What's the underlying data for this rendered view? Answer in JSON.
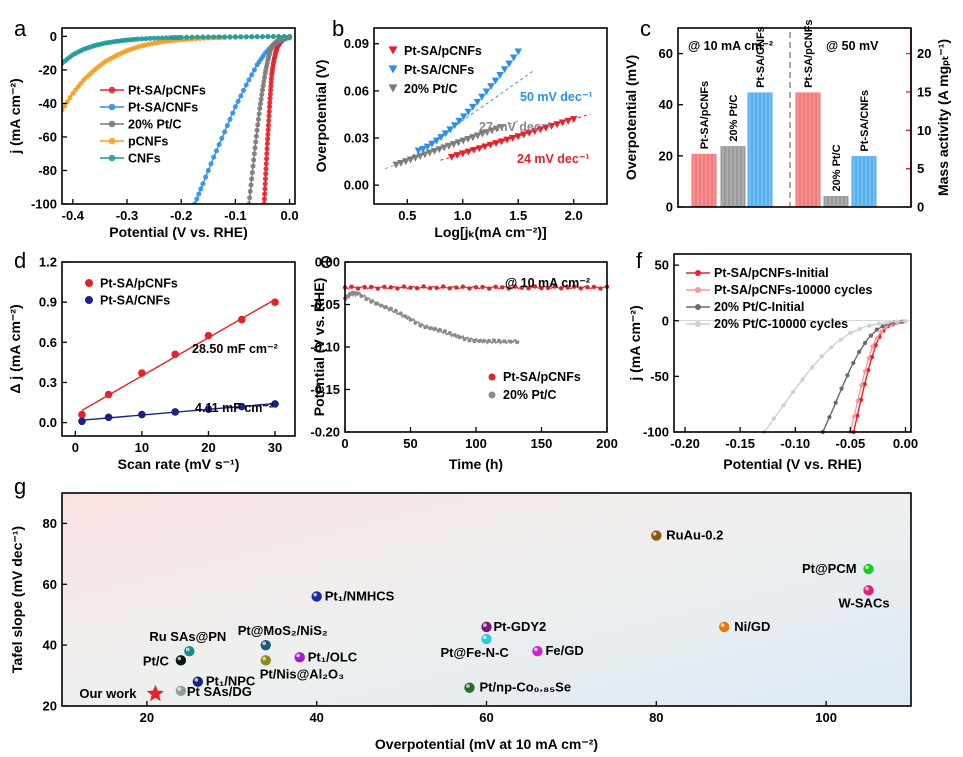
{
  "chart_data": [
    {
      "panel": "a",
      "type": "line",
      "xlabel": "Potential (V vs. RHE)",
      "ylabel": "j (mA cm⁻²)",
      "xlim": [
        -0.42,
        0.01
      ],
      "ylim": [
        -100,
        5
      ],
      "xticks": [
        -0.4,
        -0.3,
        -0.2,
        -0.1,
        0.0
      ],
      "xtick_labels": [
        "-0.4",
        "-0.3",
        "-0.2",
        "-0.1",
        "0.0"
      ],
      "yticks": [
        0,
        -20,
        -40,
        -60,
        -80,
        -100
      ],
      "ytick_labels": [
        "0",
        "-20",
        "-40",
        "-60",
        "-80",
        "-100"
      ],
      "series": [
        {
          "name": "Pt-SA/pCNFs",
          "color": "#e8202a",
          "marker": "circle",
          "x": [
            -0.047,
            -0.045,
            -0.043,
            -0.041,
            -0.039,
            -0.037,
            -0.035,
            -0.033,
            -0.03,
            -0.026,
            -0.022,
            -0.017,
            -0.012,
            -0.006,
            0.0
          ],
          "y": [
            -100,
            -88,
            -76,
            -64,
            -53,
            -42,
            -32,
            -23,
            -16,
            -10,
            -6,
            -3.5,
            -2,
            -1,
            -0.5
          ]
        },
        {
          "name": "Pt-SA/CNFs",
          "color": "#2f8fe6",
          "marker": "circle",
          "x": [
            -0.175,
            -0.16,
            -0.14,
            -0.12,
            -0.1,
            -0.08,
            -0.06,
            -0.045,
            -0.03,
            -0.02,
            -0.01,
            0.0
          ],
          "y": [
            -100,
            -88,
            -72,
            -57,
            -42,
            -29,
            -17,
            -10,
            -5,
            -3,
            -1.5,
            -0.8
          ]
        },
        {
          "name": "20% Pt/C",
          "color": "#7a7a7a",
          "marker": "circle",
          "x": [
            -0.075,
            -0.07,
            -0.065,
            -0.06,
            -0.055,
            -0.05,
            -0.045,
            -0.04,
            -0.035,
            -0.03,
            -0.02,
            -0.01,
            0.0
          ],
          "y": [
            -100,
            -85,
            -70,
            -56,
            -43,
            -32,
            -22,
            -14,
            -8,
            -5,
            -2,
            -1,
            -0.5
          ]
        },
        {
          "name": "pCNFs",
          "color": "#f5a020",
          "marker": "circle",
          "x": [
            -0.42,
            -0.4,
            -0.38,
            -0.36,
            -0.34,
            -0.32,
            -0.3,
            -0.28,
            -0.26,
            -0.24,
            -0.22,
            -0.2,
            -0.18,
            -0.15,
            -0.12,
            -0.08,
            -0.04,
            0.0
          ],
          "y": [
            -44,
            -34,
            -26,
            -20,
            -15,
            -11.5,
            -8.5,
            -6.3,
            -4.7,
            -3.5,
            -2.6,
            -2,
            -1.5,
            -1,
            -0.7,
            -0.4,
            -0.2,
            -0.1
          ]
        },
        {
          "name": "CNFs",
          "color": "#1f9a9a",
          "marker": "circle",
          "x": [
            -0.42,
            -0.4,
            -0.38,
            -0.36,
            -0.34,
            -0.32,
            -0.3,
            -0.28,
            -0.25,
            -0.22,
            -0.2,
            -0.16,
            -0.12,
            -0.08,
            -0.04,
            0.0
          ],
          "y": [
            -16,
            -11,
            -7.7,
            -5.5,
            -4,
            -3,
            -2.2,
            -1.6,
            -1.1,
            -0.8,
            -0.6,
            -0.4,
            -0.3,
            -0.2,
            -0.1,
            -0.05
          ]
        }
      ]
    },
    {
      "panel": "b",
      "type": "scatter",
      "xlabel": "Log[jₖ(mA cm⁻²)]",
      "ylabel": "Overpotential (V)",
      "xlim": [
        0.2,
        2.3
      ],
      "ylim": [
        -0.012,
        0.1
      ],
      "xticks": [
        0.5,
        1.0,
        1.5,
        2.0
      ],
      "xtick_labels": [
        "0.5",
        "1.0",
        "1.5",
        "2.0"
      ],
      "yticks": [
        0.0,
        0.03,
        0.06,
        0.09
      ],
      "ytick_labels": [
        "0.00",
        "0.03",
        "0.06",
        "0.09"
      ],
      "series": [
        {
          "name": "Pt-SA/pCNFs",
          "color": "#e8202a",
          "marker": "triangle-down",
          "x_start": 0.9,
          "x_end": 2.0,
          "y_start": 0.018,
          "y_end": 0.042
        },
        {
          "name": "Pt-SA/CNFs",
          "color": "#2f8fe6",
          "marker": "triangle-down",
          "x_start": 0.6,
          "x_end": 1.5,
          "y_start": 0.022,
          "y_end": 0.085
        },
        {
          "name": "20% Pt/C",
          "color": "#7a7a7a",
          "marker": "triangle-down",
          "x_start": 0.4,
          "x_end": 1.35,
          "y_start": 0.013,
          "y_end": 0.037
        }
      ],
      "annotations": [
        {
          "text": "50 mV dec⁻¹",
          "color": "#2f8fe6"
        },
        {
          "text": "27 mV dec⁻¹",
          "color": "#8a8a8a"
        },
        {
          "text": "24 mV dec⁻¹",
          "color": "#e8202a"
        }
      ]
    },
    {
      "panel": "c",
      "type": "bar",
      "ylabel_left": "Overpotential (mV)",
      "ylabel_right": "Mass activity (A mgₚₜ⁻¹)",
      "ylim_left": [
        0,
        70
      ],
      "ylim_right": [
        0,
        23.33
      ],
      "yticks_left": [
        0,
        20,
        40,
        60
      ],
      "yticks_right": [
        0,
        5,
        10,
        15,
        20
      ],
      "group_labels": [
        "@ 10 mA cm⁻²",
        "@ 50 mV"
      ],
      "groups": [
        {
          "label": "@ 10 mA cm⁻²",
          "axis": "left",
          "categories": [
            "Pt-SA/pCNFs",
            "20% Pt/C",
            "Pt-SA/CNFs"
          ],
          "values": [
            21,
            24,
            45
          ],
          "colors": [
            "#f27a7a",
            "#9a9a9a",
            "#56b0f0"
          ]
        },
        {
          "label": "@ 50 mV",
          "axis": "right",
          "categories": [
            "Pt-SA/pCNFs",
            "20% Pt/C",
            "Pt-SA/CNFs"
          ],
          "values": [
            15,
            1.5,
            6.7
          ],
          "colors": [
            "#f27a7a",
            "#9a9a9a",
            "#56b0f0"
          ]
        }
      ]
    },
    {
      "panel": "d",
      "type": "scatter",
      "xlabel": "Scan rate (mV s⁻¹)",
      "ylabel": "Δ j (mA cm⁻²)",
      "xlim": [
        -2,
        33
      ],
      "ylim": [
        -0.1,
        1.2
      ],
      "xticks": [
        0,
        10,
        20,
        30
      ],
      "yticks": [
        0.0,
        0.3,
        0.6,
        0.9,
        1.2
      ],
      "ytick_labels": [
        "0.0",
        "0.3",
        "0.6",
        "0.9",
        "1.2"
      ],
      "series": [
        {
          "name": "Pt-SA/pCNFs",
          "color": "#e8202a",
          "x": [
            1,
            5,
            10,
            15,
            20,
            25,
            30
          ],
          "y": [
            0.06,
            0.21,
            0.37,
            0.51,
            0.65,
            0.77,
            0.9
          ]
        },
        {
          "name": "Pt-SA/CNFs",
          "color": "#1a237e",
          "x": [
            1,
            5,
            10,
            15,
            20,
            25,
            30
          ],
          "y": [
            0.01,
            0.04,
            0.06,
            0.08,
            0.1,
            0.12,
            0.14
          ]
        }
      ],
      "annotations": [
        {
          "text": "28.50 mF cm⁻²"
        },
        {
          "text": "4.11 mF cm⁻²"
        }
      ]
    },
    {
      "panel": "e",
      "type": "line",
      "xlabel": "Time (h)",
      "ylabel": "Potential (V vs. RHE)",
      "title_note": "@ 10 mA cm⁻²",
      "xlim": [
        0,
        200
      ],
      "ylim": [
        -0.2,
        0.0
      ],
      "xticks": [
        0,
        50,
        100,
        150,
        200
      ],
      "yticks": [
        0.0,
        -0.05,
        -0.1,
        -0.15,
        -0.2
      ],
      "ytick_labels": [
        "0.00",
        "-0.05",
        "-0.10",
        "-0.15",
        "-0.20"
      ],
      "series": [
        {
          "name": "Pt-SA/pCNFs",
          "color": "#e8202a",
          "x": [
            0,
            50,
            100,
            150,
            200
          ],
          "y": [
            -0.03,
            -0.03,
            -0.03,
            -0.03,
            -0.03
          ]
        },
        {
          "name": "20% Pt/C",
          "color": "#8a8a8a",
          "x": [
            0,
            5,
            10,
            20,
            30,
            40,
            50,
            60,
            70,
            80,
            90,
            100,
            110,
            120,
            133
          ],
          "y": [
            -0.043,
            -0.038,
            -0.037,
            -0.045,
            -0.053,
            -0.06,
            -0.067,
            -0.075,
            -0.08,
            -0.085,
            -0.089,
            -0.092,
            -0.094,
            -0.094,
            -0.093
          ]
        }
      ]
    },
    {
      "panel": "f",
      "type": "line",
      "xlabel": "Potential (V vs. RHE)",
      "ylabel": "j (mA cm⁻²)",
      "xlim": [
        -0.21,
        0.005
      ],
      "ylim": [
        -100,
        60
      ],
      "xticks": [
        -0.2,
        -0.15,
        -0.1,
        -0.05,
        0.0
      ],
      "xtick_labels": [
        "-0.20",
        "-0.15",
        "-0.10",
        "-0.05",
        "0.00"
      ],
      "yticks": [
        50,
        0,
        -50,
        -100
      ],
      "series": [
        {
          "name": "Pt-SA/pCNFs-Initial",
          "color": "#e8202a",
          "x": [
            -0.047,
            -0.042,
            -0.037,
            -0.032,
            -0.027,
            -0.022,
            -0.016,
            -0.01,
            -0.005,
            0.0
          ],
          "y": [
            -100,
            -78,
            -57,
            -38,
            -22,
            -11,
            -5,
            -2.5,
            -1.2,
            -0.6
          ]
        },
        {
          "name": "Pt-SA/pCNFs-10000 cycles",
          "color": "#f59a9a",
          "x": [
            -0.05,
            -0.045,
            -0.04,
            -0.035,
            -0.03,
            -0.024,
            -0.018,
            -0.011,
            -0.005,
            0.0
          ],
          "y": [
            -100,
            -79,
            -58,
            -39,
            -23,
            -12,
            -5.5,
            -2.6,
            -1.2,
            -0.6
          ]
        },
        {
          "name": "20% Pt/C-Initial",
          "color": "#6a6a6a",
          "x": [
            -0.075,
            -0.066,
            -0.058,
            -0.05,
            -0.042,
            -0.034,
            -0.026,
            -0.018,
            -0.01,
            0.0
          ],
          "y": [
            -100,
            -80,
            -61,
            -43,
            -28,
            -16,
            -8,
            -3.5,
            -1.5,
            -0.5
          ]
        },
        {
          "name": "20% Pt/C-10000 cycles",
          "color": "#cfcfcf",
          "x": [
            -0.128,
            -0.115,
            -0.102,
            -0.089,
            -0.076,
            -0.063,
            -0.05,
            -0.037,
            -0.024,
            -0.012,
            0.0
          ],
          "y": [
            -100,
            -82,
            -64,
            -47,
            -32,
            -20,
            -11,
            -5.5,
            -2.5,
            -1,
            -0.3
          ]
        }
      ]
    },
    {
      "panel": "g",
      "type": "scatter",
      "xlabel": "Overpotential (mV at 10 mA cm⁻²)",
      "ylabel": "Tafel slope (mV dec⁻¹)",
      "xlim": [
        10,
        110
      ],
      "ylim": [
        20,
        90
      ],
      "xticks": [
        20,
        40,
        60,
        80,
        100
      ],
      "yticks": [
        20,
        40,
        60,
        80
      ],
      "points": [
        {
          "label": "Our work",
          "x": 21,
          "y": 24,
          "color": "#e8202a",
          "marker": "star"
        },
        {
          "label": "Pt SAs/DG",
          "x": 24,
          "y": 25,
          "color": "#9a9a9a",
          "marker": "sphere"
        },
        {
          "label": "Pt₁/NPC",
          "x": 26,
          "y": 28,
          "color": "#1a237e",
          "marker": "sphere"
        },
        {
          "label": "Pt/C",
          "x": 24,
          "y": 35,
          "color": "#111111",
          "marker": "sphere"
        },
        {
          "label": "Ru SAs@PN",
          "x": 25,
          "y": 38,
          "color": "#1f8a8a",
          "marker": "sphere"
        },
        {
          "label": "Pt@MoS₂/NiS₂",
          "x": 34,
          "y": 40,
          "color": "#1a5a7a",
          "marker": "sphere"
        },
        {
          "label": "Pt/Nis@Al₂O₃",
          "x": 34,
          "y": 35,
          "color": "#8a8a20",
          "marker": "sphere"
        },
        {
          "label": "Pt₁/OLC",
          "x": 38,
          "y": 36,
          "color": "#a020c8",
          "marker": "sphere"
        },
        {
          "label": "Pt₁/NMHCS",
          "x": 40,
          "y": 56,
          "color": "#1a2aa8",
          "marker": "sphere"
        },
        {
          "label": "Pt-GDY2",
          "x": 60,
          "y": 46,
          "color": "#7a1a7a",
          "marker": "sphere"
        },
        {
          "label": "Pt@Fe-N-C",
          "x": 60,
          "y": 42,
          "color": "#30c8e0",
          "marker": "sphere"
        },
        {
          "label": "Fe/GD",
          "x": 66,
          "y": 38,
          "color": "#d020d0",
          "marker": "sphere"
        },
        {
          "label": "Pt/np-Co₀.₈₅Se",
          "x": 58,
          "y": 26,
          "color": "#2a6a2a",
          "marker": "sphere"
        },
        {
          "label": "RuAu-0.2",
          "x": 80,
          "y": 76,
          "color": "#8a5a14",
          "marker": "sphere"
        },
        {
          "label": "Ni/GD",
          "x": 88,
          "y": 46,
          "color": "#e07a10",
          "marker": "sphere"
        },
        {
          "label": "Pt@PCM",
          "x": 105,
          "y": 65,
          "color": "#20c820",
          "marker": "sphere"
        },
        {
          "label": "W-SACs",
          "x": 105,
          "y": 58,
          "color": "#e0207a",
          "marker": "sphere"
        }
      ]
    }
  ]
}
